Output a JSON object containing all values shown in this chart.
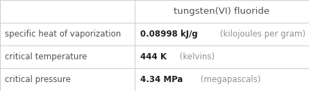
{
  "title": "tungsten(VI) fluoride",
  "col_split": 0.435,
  "rows": [
    {
      "label": "specific heat of vaporization",
      "value_bold": "0.08998 kJ/g",
      "value_light": " (kilojoules per gram)"
    },
    {
      "label": "critical temperature",
      "value_bold": "444 K",
      "value_light": " (kelvins)"
    },
    {
      "label": "critical pressure",
      "value_bold": "4.34 MPa",
      "value_light": " (megapascals)"
    }
  ],
  "background_color": "#ffffff",
  "line_color": "#cccccc",
  "label_color": "#505050",
  "value_bold_color": "#202020",
  "value_light_color": "#909090",
  "title_color": "#505050",
  "title_fontsize": 9.5,
  "label_fontsize": 8.5,
  "value_bold_fontsize": 8.5,
  "value_light_fontsize": 8.5
}
